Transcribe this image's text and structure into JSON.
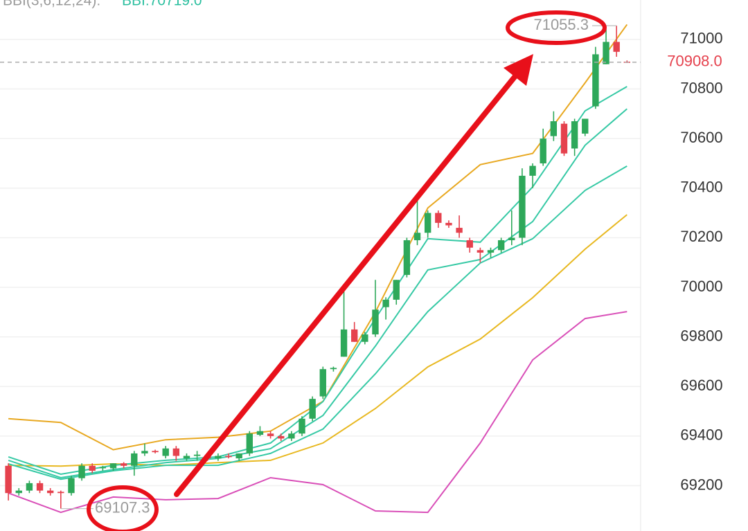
{
  "chart_data": {
    "type": "candlestick",
    "indicator_name": "BBI(3,6,12,24):",
    "indicator_value": "BBI:70719.0",
    "xlim": [
      -0.8,
      60.3
    ],
    "ylim": [
      69017,
      71159
    ],
    "yticks": [
      69200,
      69400,
      69600,
      69800,
      70000,
      70200,
      70400,
      70600,
      70800,
      71000
    ],
    "grid": true,
    "up_color": "#2ea85a",
    "down_color": "#e5414d",
    "open": [
      69280,
      69170,
      69180,
      69210,
      69180,
      69175,
      69170,
      69230,
      69280,
      69270,
      69270,
      69290,
      69280,
      69330,
      69340,
      69320,
      69350,
      69310,
      69320,
      69320,
      69310,
      69320,
      69310,
      69330,
      69405,
      69410,
      69400,
      69390,
      69410,
      69470,
      69560,
      69670,
      69720,
      69830,
      69780,
      69810,
      69920,
      69950,
      70050,
      70190,
      70220,
      70300,
      70260,
      70240,
      70190,
      70150,
      70140,
      70150,
      70190,
      70200,
      70450,
      70500,
      70610,
      70660,
      70560,
      70620,
      70730,
      70900,
      70990,
      70910
    ],
    "high": [
      69290,
      69190,
      69220,
      69220,
      69190,
      69180,
      69240,
      69290,
      69290,
      69280,
      69290,
      69295,
      69340,
      69370,
      69345,
      69360,
      69360,
      69330,
      69340,
      69330,
      69330,
      69330,
      69330,
      69420,
      69440,
      69420,
      69410,
      69420,
      69480,
      69560,
      69680,
      69680,
      70000,
      69860,
      69820,
      70030,
      69960,
      70030,
      70200,
      70360,
      70310,
      70310,
      70270,
      70290,
      70200,
      70160,
      70160,
      70200,
      70310,
      70480,
      70500,
      70640,
      70710,
      70670,
      70680,
      70680,
      70970,
      71040,
      71055.3,
      70915
    ],
    "low": [
      69140,
      69160,
      69170,
      69170,
      69160,
      69107.3,
      69160,
      69220,
      69250,
      69260,
      69260,
      69270,
      69240,
      69320,
      69330,
      69310,
      69300,
      69300,
      69300,
      69300,
      69300,
      69310,
      69300,
      69320,
      69400,
      69390,
      69380,
      69380,
      69400,
      69460,
      69550,
      69660,
      69720,
      69780,
      69770,
      69800,
      69870,
      69930,
      70040,
      70170,
      70200,
      70240,
      70240,
      70200,
      70140,
      70100,
      70120,
      70140,
      70170,
      70170,
      70400,
      70490,
      70590,
      70530,
      70530,
      70610,
      70720,
      70900,
      70930,
      70905
    ],
    "close": [
      69170,
      69180,
      69210,
      69180,
      69170,
      69170,
      69230,
      69280,
      69260,
      69275,
      69290,
      69280,
      69330,
      69340,
      69335,
      69350,
      69320,
      69320,
      69325,
      69310,
      69320,
      69315,
      69330,
      69410,
      69420,
      69400,
      69390,
      69410,
      69470,
      69550,
      69670,
      69675,
      69830,
      69780,
      69810,
      69910,
      69950,
      70030,
      70190,
      70220,
      70300,
      70260,
      70250,
      70220,
      70160,
      70140,
      70150,
      70190,
      70200,
      70450,
      70490,
      70600,
      70670,
      70540,
      70670,
      70680,
      70940,
      70990,
      70950,
      70908
    ],
    "lines": [
      {
        "color": "#e8a820",
        "x": [
          0,
          5,
          10,
          15,
          20,
          25,
          30,
          35,
          40,
          45,
          50,
          55,
          59
        ],
        "values": [
          69470,
          69455,
          69345,
          69385,
          69395,
          69420,
          69540,
          69900,
          70320,
          70495,
          70540,
          70825,
          71060
        ]
      },
      {
        "color": "#d94fb8",
        "x": [
          0,
          5,
          10,
          15,
          20,
          25,
          30,
          35,
          40,
          45,
          50,
          55,
          59
        ],
        "values": [
          69170,
          69092,
          69154,
          69143,
          69148,
          69232,
          69204,
          69098,
          69092,
          69372,
          69707,
          69874,
          69902
        ]
      },
      {
        "color": "#e8b820",
        "x": [
          0,
          5,
          10,
          15,
          20,
          25,
          30,
          35,
          40,
          45,
          50,
          55,
          59
        ],
        "values": [
          69282,
          69279,
          69288,
          69282,
          69293,
          69302,
          69372,
          69511,
          69679,
          69791,
          69958,
          70154,
          70293
        ]
      },
      {
        "color": "#36c9a5",
        "x": [
          0,
          5,
          10,
          15,
          20,
          25,
          30,
          35,
          40,
          45,
          50,
          55,
          59
        ],
        "values": [
          69316,
          69246,
          69282,
          69302,
          69316,
          69372,
          69539,
          69874,
          70196,
          70182,
          70405,
          70712,
          70810
        ]
      },
      {
        "color": "#36c9a5",
        "x": [
          0,
          5,
          10,
          15,
          20,
          25,
          30,
          35,
          40,
          45,
          50,
          55,
          59
        ],
        "values": [
          69302,
          69232,
          69265,
          69293,
          69310,
          69349,
          69483,
          69763,
          70070,
          70112,
          70265,
          70573,
          70720
        ]
      },
      {
        "color": "#36c9a5",
        "x": [
          0,
          5,
          10,
          15,
          20,
          25,
          30,
          35,
          40,
          45,
          50,
          55,
          59
        ],
        "values": [
          69288,
          69226,
          69260,
          69282,
          69282,
          69330,
          69428,
          69651,
          69902,
          70098,
          70196,
          70391,
          70489
        ]
      }
    ],
    "high_marker": 71055.3,
    "low_marker": 69107.3,
    "last_price": {
      "value": 70908,
      "label": "70908.0"
    }
  }
}
